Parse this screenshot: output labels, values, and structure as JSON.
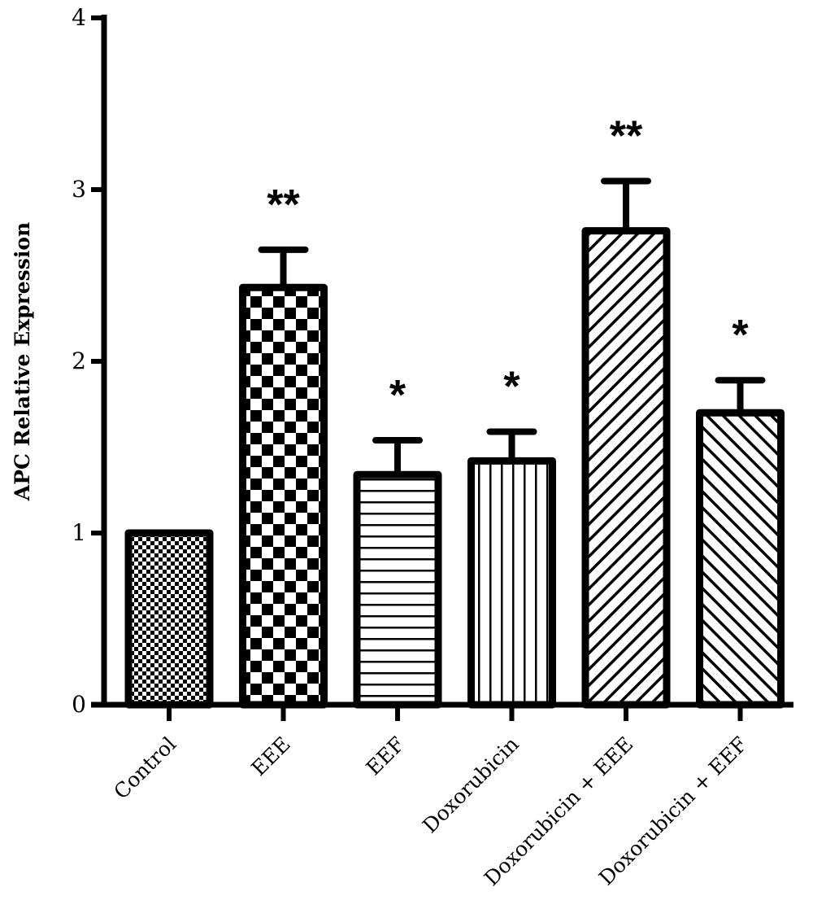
{
  "chart_data": {
    "type": "bar",
    "title": "",
    "xlabel": "",
    "ylabel": "APC Relative Expression",
    "ylim": [
      0,
      4
    ],
    "yticks": [
      "0",
      "1",
      "2",
      "3",
      "4"
    ],
    "categories": [
      "Control",
      "EEE",
      "EEF",
      "Doxorubicin",
      "Doxorubicin + EEE",
      "Doxorubicin + EEF"
    ],
    "values": [
      1.0,
      2.43,
      1.34,
      1.42,
      2.76,
      1.7
    ],
    "errors": [
      0.0,
      0.22,
      0.2,
      0.17,
      0.29,
      0.19
    ],
    "significance": [
      "",
      "**",
      "*",
      "*",
      "**",
      "*"
    ],
    "patterns": [
      "fine-checker",
      "checker",
      "horizontal-lines",
      "vertical-lines",
      "diagonal-forward",
      "diagonal-back"
    ],
    "grid": false,
    "legend": "none",
    "bar_color": "#000000",
    "background": "#ffffff"
  }
}
